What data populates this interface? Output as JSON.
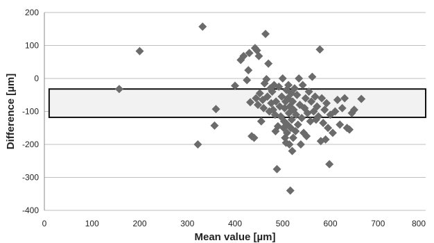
{
  "chart_data": {
    "type": "scatter",
    "xlabel": "Mean value [µm]",
    "ylabel": "Difference  [µm]",
    "xlim": [
      0,
      800
    ],
    "ylim": [
      -400,
      200
    ],
    "x_ticks": [
      0,
      100,
      200,
      300,
      400,
      500,
      600,
      700,
      800
    ],
    "y_ticks": [
      200,
      100,
      0,
      -100,
      -200,
      -300,
      -400
    ],
    "x_tick_labels": [
      "0",
      "100",
      "200",
      "300",
      "400",
      "500",
      "600",
      "700",
      "800"
    ],
    "y_tick_labels": [
      "200",
      "100",
      "0",
      "-100",
      "-200",
      "-300",
      "-400"
    ],
    "grid": "horizontal",
    "band": {
      "x_range": [
        10,
        800
      ],
      "y_range": [
        -118,
        -32
      ]
    },
    "marker": "diamond",
    "point_color": "#6b6b6b",
    "points": [
      [
        157,
        -32
      ],
      [
        200,
        83
      ],
      [
        322,
        -200
      ],
      [
        332,
        157
      ],
      [
        357,
        -143
      ],
      [
        360,
        -93
      ],
      [
        400,
        -22
      ],
      [
        412,
        56
      ],
      [
        418,
        68
      ],
      [
        425,
        -5
      ],
      [
        428,
        25
      ],
      [
        430,
        77
      ],
      [
        432,
        -72
      ],
      [
        435,
        -175
      ],
      [
        440,
        -180
      ],
      [
        442,
        92
      ],
      [
        444,
        -60
      ],
      [
        446,
        85
      ],
      [
        448,
        -80
      ],
      [
        450,
        68
      ],
      [
        452,
        -45
      ],
      [
        455,
        -130
      ],
      [
        458,
        -65
      ],
      [
        460,
        -90
      ],
      [
        462,
        -15
      ],
      [
        464,
        135
      ],
      [
        466,
        -2
      ],
      [
        468,
        -55
      ],
      [
        470,
        45
      ],
      [
        472,
        -100
      ],
      [
        474,
        -30
      ],
      [
        476,
        -75
      ],
      [
        478,
        -40
      ],
      [
        480,
        -95
      ],
      [
        482,
        -20
      ],
      [
        484,
        -110
      ],
      [
        485,
        -160
      ],
      [
        486,
        -70
      ],
      [
        488,
        -275
      ],
      [
        490,
        -145
      ],
      [
        492,
        -25
      ],
      [
        494,
        -85
      ],
      [
        496,
        -115
      ],
      [
        498,
        -55
      ],
      [
        500,
        0
      ],
      [
        502,
        -150
      ],
      [
        503,
        -130
      ],
      [
        504,
        -90
      ],
      [
        505,
        -180
      ],
      [
        506,
        -70
      ],
      [
        507,
        -195
      ],
      [
        508,
        -35
      ],
      [
        509,
        -165
      ],
      [
        510,
        -140
      ],
      [
        511,
        -60
      ],
      [
        512,
        -20
      ],
      [
        513,
        -105
      ],
      [
        514,
        -200
      ],
      [
        515,
        -85
      ],
      [
        516,
        -340
      ],
      [
        517,
        -150
      ],
      [
        518,
        -45
      ],
      [
        519,
        -125
      ],
      [
        520,
        -220
      ],
      [
        521,
        -70
      ],
      [
        522,
        -180
      ],
      [
        523,
        -95
      ],
      [
        525,
        -30
      ],
      [
        527,
        -160
      ],
      [
        528,
        -110
      ],
      [
        530,
        -50
      ],
      [
        532,
        -140
      ],
      [
        534,
        0
      ],
      [
        536,
        -80
      ],
      [
        538,
        -200
      ],
      [
        540,
        -120
      ],
      [
        542,
        -20
      ],
      [
        544,
        -165
      ],
      [
        546,
        -90
      ],
      [
        548,
        -60
      ],
      [
        550,
        -175
      ],
      [
        552,
        -105
      ],
      [
        555,
        -40
      ],
      [
        558,
        -130
      ],
      [
        560,
        -70
      ],
      [
        562,
        5
      ],
      [
        565,
        -100
      ],
      [
        568,
        -55
      ],
      [
        570,
        -125
      ],
      [
        572,
        -85
      ],
      [
        575,
        -115
      ],
      [
        578,
        88
      ],
      [
        580,
        -190
      ],
      [
        582,
        -60
      ],
      [
        585,
        -135
      ],
      [
        588,
        -95
      ],
      [
        590,
        -185
      ],
      [
        592,
        -75
      ],
      [
        595,
        -150
      ],
      [
        598,
        -260
      ],
      [
        600,
        -110
      ],
      [
        605,
        -165
      ],
      [
        610,
        -100
      ],
      [
        615,
        -65
      ],
      [
        620,
        -140
      ],
      [
        625,
        -90
      ],
      [
        630,
        -60
      ],
      [
        635,
        -150
      ],
      [
        640,
        -155
      ],
      [
        645,
        -105
      ],
      [
        650,
        -95
      ],
      [
        665,
        -62
      ]
    ]
  }
}
